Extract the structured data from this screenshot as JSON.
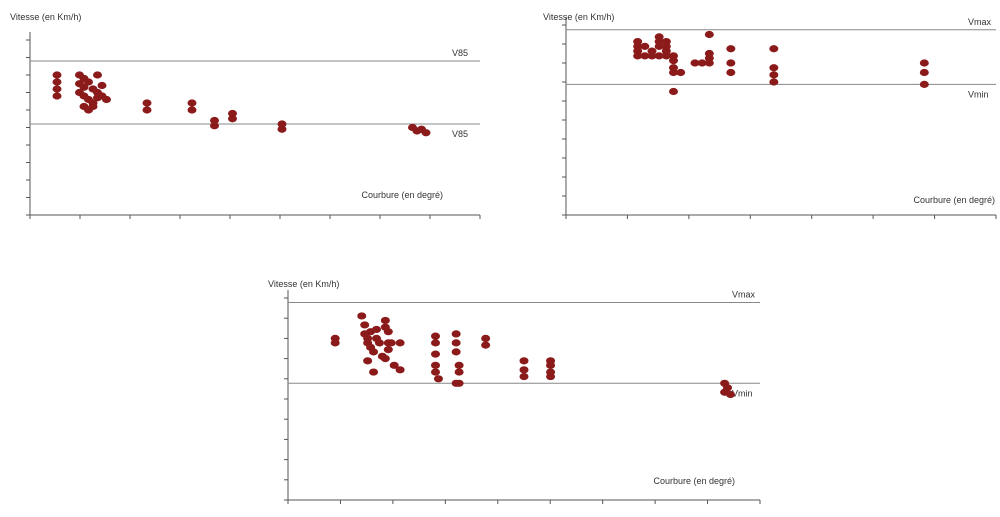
{
  "colors": {
    "point": "#8b1a1a",
    "axis": "#555555",
    "refline": "#888888",
    "text": "#333333"
  },
  "chart_data": [
    {
      "type": "scatter",
      "title": "",
      "ylabel": "Vitesse (en Km/h)",
      "xlabel": "Courbure (en degré)",
      "xlim": [
        0,
        100
      ],
      "ylim": [
        0,
        100
      ],
      "grid": false,
      "ref_lines": [
        {
          "y": 88,
          "label": "V85"
        },
        {
          "y": 52,
          "label": "V85"
        }
      ],
      "series": [
        {
          "points": [
            [
              6,
              80
            ],
            [
              6,
              76
            ],
            [
              6,
              72
            ],
            [
              6,
              68
            ],
            [
              11,
              80
            ],
            [
              12,
              78
            ],
            [
              11,
              75
            ],
            [
              12,
              73
            ],
            [
              13,
              76
            ],
            [
              14,
              72
            ],
            [
              15,
              70
            ],
            [
              11,
              70
            ],
            [
              12,
              68
            ],
            [
              13,
              66
            ],
            [
              14,
              64
            ],
            [
              15,
              67
            ],
            [
              12,
              62
            ],
            [
              13,
              60
            ],
            [
              14,
              62
            ],
            [
              16,
              68
            ],
            [
              17,
              66
            ],
            [
              15,
              80
            ],
            [
              16,
              74
            ],
            [
              26,
              64
            ],
            [
              26,
              60
            ],
            [
              36,
              64
            ],
            [
              36,
              60
            ],
            [
              45,
              58
            ],
            [
              45,
              55
            ],
            [
              41,
              54
            ],
            [
              41,
              51
            ],
            [
              56,
              52
            ],
            [
              56,
              49
            ],
            [
              85,
              50
            ],
            [
              87,
              49
            ],
            [
              86,
              48
            ],
            [
              88,
              47
            ]
          ]
        }
      ]
    },
    {
      "type": "scatter",
      "title": "",
      "ylabel": "Vitesse (en Km/h)",
      "xlabel": "Courbure (en degré)",
      "xlim": [
        0,
        60
      ],
      "ylim": [
        0,
        80
      ],
      "grid": false,
      "ref_lines": [
        {
          "y": 78,
          "label": "Vmax"
        },
        {
          "y": 55,
          "label": "Vmin"
        }
      ],
      "series": [
        {
          "points": [
            [
              10,
              73
            ],
            [
              10,
              71
            ],
            [
              10,
              69
            ],
            [
              11,
              71
            ],
            [
              10,
              67
            ],
            [
              11,
              67
            ],
            [
              12,
              69
            ],
            [
              12,
              67
            ],
            [
              13,
              75
            ],
            [
              13,
              73
            ],
            [
              13,
              71
            ],
            [
              14,
              73
            ],
            [
              14,
              71
            ],
            [
              14,
              69
            ],
            [
              13,
              67
            ],
            [
              14,
              67
            ],
            [
              15,
              67
            ],
            [
              15,
              65
            ],
            [
              15,
              62
            ],
            [
              15,
              60
            ],
            [
              16,
              60
            ],
            [
              15,
              52
            ],
            [
              18,
              64
            ],
            [
              19,
              64
            ],
            [
              20,
              76
            ],
            [
              20,
              68
            ],
            [
              20,
              66
            ],
            [
              20,
              64
            ],
            [
              23,
              70
            ],
            [
              23,
              64
            ],
            [
              23,
              60
            ],
            [
              29,
              70
            ],
            [
              29,
              62
            ],
            [
              29,
              59
            ],
            [
              29,
              56
            ],
            [
              50,
              64
            ],
            [
              50,
              60
            ],
            [
              50,
              55
            ]
          ]
        }
      ]
    },
    {
      "type": "scatter",
      "title": "",
      "ylabel": "Vitesse (en Km/h)",
      "xlabel": "Courbure (en degré)",
      "xlim": [
        0,
        160
      ],
      "ylim": [
        0,
        90
      ],
      "grid": false,
      "ref_lines": [
        {
          "y": 88,
          "label": "Vmax"
        },
        {
          "y": 52,
          "label": "Vmin"
        }
      ],
      "series": [
        {
          "points": [
            [
              16,
              72
            ],
            [
              16,
              70
            ],
            [
              25,
              82
            ],
            [
              26,
              78
            ],
            [
              26,
              74
            ],
            [
              27,
              72
            ],
            [
              28,
              75
            ],
            [
              27,
              70
            ],
            [
              28,
              68
            ],
            [
              27,
              62
            ],
            [
              29,
              66
            ],
            [
              30,
              76
            ],
            [
              30,
              72
            ],
            [
              31,
              70
            ],
            [
              29,
              57
            ],
            [
              32,
              64
            ],
            [
              33,
              80
            ],
            [
              33,
              77
            ],
            [
              34,
              75
            ],
            [
              34,
              70
            ],
            [
              34,
              67
            ],
            [
              33,
              63
            ],
            [
              35,
              70
            ],
            [
              36,
              60
            ],
            [
              38,
              58
            ],
            [
              38,
              70
            ],
            [
              50,
              73
            ],
            [
              50,
              70
            ],
            [
              50,
              65
            ],
            [
              50,
              60
            ],
            [
              50,
              57
            ],
            [
              51,
              54
            ],
            [
              57,
              74
            ],
            [
              57,
              70
            ],
            [
              57,
              66
            ],
            [
              58,
              60
            ],
            [
              58,
              57
            ],
            [
              57,
              52
            ],
            [
              58,
              52
            ],
            [
              67,
              72
            ],
            [
              67,
              69
            ],
            [
              80,
              62
            ],
            [
              80,
              58
            ],
            [
              80,
              55
            ],
            [
              89,
              62
            ],
            [
              89,
              60
            ],
            [
              89,
              57
            ],
            [
              89,
              55
            ],
            [
              148,
              52
            ],
            [
              149,
              50
            ],
            [
              148,
              48
            ],
            [
              150,
              47
            ]
          ]
        }
      ]
    }
  ]
}
